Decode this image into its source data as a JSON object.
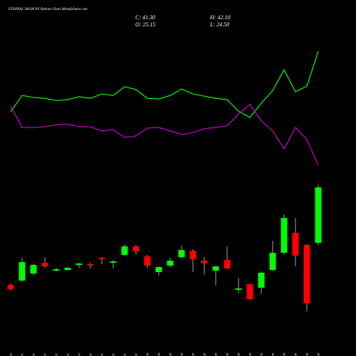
{
  "chart_data": {
    "type": "candlestick",
    "title": "ETERNAL 300.00 PE Options Chart MunafaSutra.com",
    "info": {
      "close": "C: 41.30",
      "open": "O: 25.15",
      "high": "H: 42.10",
      "low": "L: 24.50"
    },
    "categories": [
      "15 Dec",
      "16 Dec",
      "17 Dec",
      "18 Dec",
      "19 Dec",
      "22 Dec",
      "23 Dec",
      "24 Dec",
      "26 Dec",
      "29 Dec",
      "30 Dec",
      "31 Dec",
      "01 Jan",
      "02 Jan",
      "05 Jan",
      "06 Jan",
      "07 Jan",
      "08 Jan",
      "09 Jan",
      "12 Jan",
      "13 Jan",
      "14 Jan",
      "16 Jan",
      "19 Jan",
      "20 Jan",
      "21 Jan",
      "22 Jan",
      "23 Jan"
    ],
    "open": [
      12.94,
      14.18,
      16.25,
      19.35,
      17.08,
      17.28,
      18.73,
      18.94,
      20.8,
      19.35,
      21.63,
      24.12,
      21.22,
      16.66,
      18.53,
      21.01,
      22.87,
      19.98,
      17.08,
      20.18,
      11.49,
      13.14,
      12.11,
      17.28,
      22.25,
      28.05,
      24.53,
      25.15
    ],
    "high": [
      13.35,
      20.8,
      19.15,
      21.01,
      17.91,
      18.12,
      19.35,
      19.35,
      21.01,
      20.18,
      24.74,
      24.53,
      21.63,
      18.32,
      20.8,
      24.32,
      23.29,
      21.01,
      18.53,
      24.12,
      15.01,
      13.14,
      16.87,
      25.77,
      33.43,
      32.4,
      24.74,
      42.1
    ],
    "low": [
      11.28,
      13.97,
      15.83,
      17.91,
      16.87,
      17.08,
      17.91,
      17.7,
      18.94,
      17.7,
      21.42,
      21.84,
      17.91,
      15.63,
      18.12,
      20.6,
      16.66,
      16.04,
      12.73,
      17.49,
      10.66,
      8.59,
      10.25,
      17.08,
      21.84,
      18.32,
      5.28,
      24.5
    ],
    "close": [
      11.69,
      19.56,
      18.73,
      18.32,
      17.49,
      17.91,
      19.15,
      18.53,
      20.39,
      19.77,
      24.12,
      22.67,
      18.53,
      18.12,
      19.98,
      23.08,
      20.39,
      19.15,
      18.32,
      17.7,
      11.9,
      8.8,
      16.46,
      22.25,
      32.4,
      21.42,
      7.56,
      41.3
    ],
    "up_color": "#00ff00",
    "down_color": "#ff0000",
    "ylim": [
      -3.6,
      87.5
    ],
    "y2lim": [
      0,
      100
    ],
    "series": [
      {
        "color": "#00ff00",
        "axis": "y2",
        "values": [
          73.4,
          78.6,
          78.0,
          77.7,
          77.0,
          77.3,
          78.2,
          77.7,
          79.1,
          78.6,
          81.4,
          80.5,
          77.7,
          77.5,
          78.6,
          80.7,
          79.1,
          78.4,
          77.7,
          77.3,
          73.6,
          71.6,
          76.1,
          80.2,
          86.8,
          79.8,
          81.6,
          92.7
        ]
      },
      {
        "color": "#cc00cc",
        "axis": "y2",
        "values": [
          75.2,
          68.4,
          68.4,
          68.6,
          69.3,
          69.5,
          68.6,
          68.6,
          67.3,
          67.7,
          65.2,
          65.7,
          68.2,
          68.4,
          67.3,
          66.1,
          66.8,
          68.0,
          68.4,
          68.9,
          72.7,
          75.7,
          70.5,
          67.3,
          61.6,
          68.4,
          64.5,
          56.4
        ]
      }
    ]
  }
}
